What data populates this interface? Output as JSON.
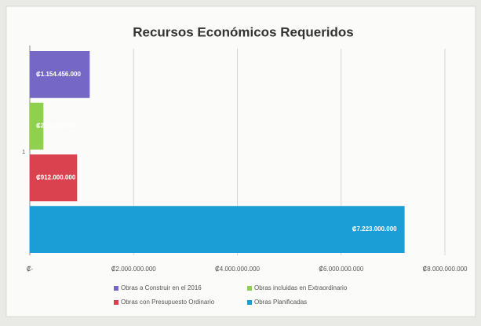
{
  "chart_data": {
    "type": "bar",
    "orientation": "horizontal",
    "title": "Recursos Económicos Requeridos",
    "categories": [
      "1"
    ],
    "series": [
      {
        "name": "Obras a Construir en el 2016",
        "color": "#7467c6",
        "values": [
          1154456000
        ],
        "value_labels": [
          "₡1.154.456.000"
        ]
      },
      {
        "name": "Obras incluidas en  Extraordinario",
        "color": "#8fd14f",
        "values": [
          262400000
        ],
        "value_labels": [
          "₡262.400.000"
        ]
      },
      {
        "name": "Obras con Presupuesto Ordinario",
        "color": "#d9424e",
        "values": [
          912000000
        ],
        "value_labels": [
          "₡912.000.000"
        ]
      },
      {
        "name": "Obras Planificadas",
        "color": "#1b9ed6",
        "values": [
          7223000000
        ],
        "value_labels": [
          "₡7.223.000.000"
        ]
      }
    ],
    "xlim": [
      0,
      8000000000
    ],
    "xticks": [
      {
        "value": 0,
        "label": "₡-"
      },
      {
        "value": 2000000000,
        "label": "₡2.000.000.000"
      },
      {
        "value": 4000000000,
        "label": "₡4.000.000.000"
      },
      {
        "value": 6000000000,
        "label": "₡6.000.000.000"
      },
      {
        "value": 8000000000,
        "label": "₡8.000.000.000"
      }
    ],
    "grid": true,
    "legend": "bottom"
  }
}
